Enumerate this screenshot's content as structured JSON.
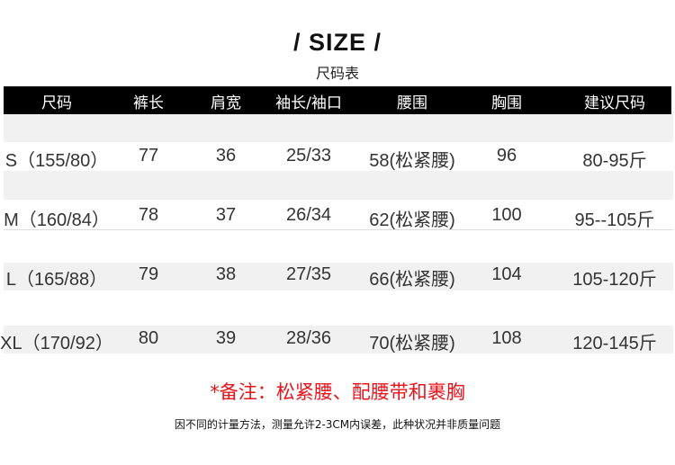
{
  "title": "/ SIZE /",
  "subtitle": "尺码表",
  "table": {
    "headers": [
      "尺码",
      "裤长",
      "肩宽",
      "袖长/袖口",
      "腰围",
      "胸围",
      "建议尺码"
    ],
    "rows": [
      [
        "S（155/80）",
        "77",
        "36",
        "25/33",
        "58(松紧腰)",
        "96",
        "80-95斤"
      ],
      [
        "M（160/84）",
        "78",
        "37",
        "26/34",
        "62(松紧腰)",
        "100",
        "95--105斤"
      ],
      [
        "L（165/88）",
        "79",
        "38",
        "27/35",
        "66(松紧腰)",
        "104",
        "105-120斤"
      ],
      [
        "XL（170/92）",
        "80",
        "39",
        "28/36",
        "70(松紧腰)",
        "108",
        "120-145斤"
      ]
    ]
  },
  "note": "*备注：松紧腰、配腰带和裹胸",
  "footer": "因不同的计量方法，测量允许2-3CM内误差，此种状况并非质量问题",
  "colors": {
    "header_bg": "#000000",
    "stripe": "#f1f1f1",
    "note": "#e8141b"
  }
}
